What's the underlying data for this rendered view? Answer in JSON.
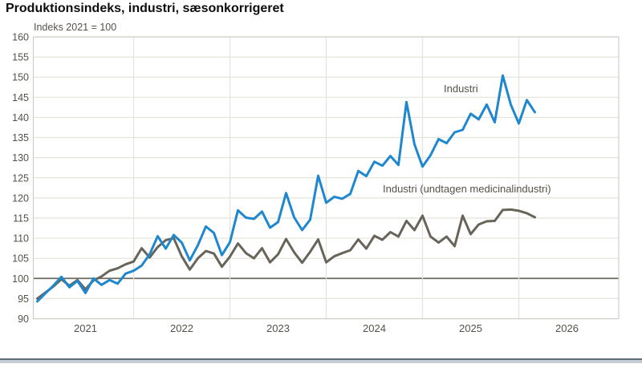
{
  "page": {
    "footer_bar": {
      "line_color": "#5c6d78",
      "band_color": "#c3cdd3"
    }
  },
  "chart_data": {
    "type": "line",
    "title": "Produktionsindeks, industri, sæsonkorrigeret",
    "subtitle": "Indeks 2021 = 100",
    "x": [
      "2020-07",
      "2020-08",
      "2020-09",
      "2020-10",
      "2020-11",
      "2020-12",
      "2021-01",
      "2021-02",
      "2021-03",
      "2021-04",
      "2021-05",
      "2021-06",
      "2021-07",
      "2021-08",
      "2021-09",
      "2021-10",
      "2021-11",
      "2021-12",
      "2022-01",
      "2022-02",
      "2022-03",
      "2022-04",
      "2022-05",
      "2022-06",
      "2022-07",
      "2022-08",
      "2022-09",
      "2022-10",
      "2022-11",
      "2022-12",
      "2023-01",
      "2023-02",
      "2023-03",
      "2023-04",
      "2023-05",
      "2023-06",
      "2023-07",
      "2023-08",
      "2023-09",
      "2023-10",
      "2023-11",
      "2023-12",
      "2024-01",
      "2024-02",
      "2024-03",
      "2024-04",
      "2024-05",
      "2024-06",
      "2024-07",
      "2024-08",
      "2024-09",
      "2024-10",
      "2024-11",
      "2024-12",
      "2025-01",
      "2025-02",
      "2025-03",
      "2025-04",
      "2025-05",
      "2025-06",
      "2025-07",
      "2025-08",
      "2025-09"
    ],
    "series": [
      {
        "name": "Industri (undtagen medicinalindustri)",
        "color": "#68645a",
        "values": [
          95.0,
          96.5,
          98.0,
          99.8,
          98.2,
          99.6,
          97.3,
          99.5,
          100.5,
          101.9,
          102.5,
          103.5,
          104.2,
          107.5,
          105.2,
          107.8,
          109.5,
          110.0,
          105.5,
          102.2,
          105.0,
          106.8,
          106.2,
          102.9,
          105.4,
          108.7,
          106.3,
          105.0,
          107.5,
          104.0,
          106.0,
          109.8,
          106.5,
          103.9,
          106.6,
          109.7,
          104.0,
          105.5,
          106.3,
          107.0,
          109.7,
          107.4,
          110.6,
          109.6,
          111.5,
          110.4,
          114.3,
          112.0,
          115.6,
          110.4,
          108.9,
          110.4,
          108.0,
          115.6,
          111.0,
          113.4,
          114.2,
          114.3,
          117.0,
          117.1,
          116.8,
          116.2,
          115.2
        ]
      },
      {
        "name": "Industri",
        "color": "#1e87cd",
        "values": [
          94.3,
          96.3,
          98.2,
          100.4,
          97.8,
          99.4,
          96.4,
          100.0,
          98.4,
          99.6,
          98.7,
          101.2,
          101.9,
          103.2,
          106.0,
          110.5,
          107.4,
          110.8,
          108.9,
          104.5,
          108.2,
          112.9,
          111.3,
          105.8,
          109.0,
          116.9,
          115.1,
          114.8,
          116.6,
          112.6,
          114.0,
          121.2,
          115.2,
          112.0,
          114.6,
          125.5,
          118.8,
          120.3,
          119.8,
          121.0,
          126.7,
          125.4,
          129.0,
          128.0,
          130.4,
          128.2,
          143.8,
          133.3,
          127.8,
          130.6,
          134.6,
          133.6,
          136.3,
          136.9,
          140.9,
          139.5,
          143.2,
          138.8,
          150.4,
          143.2,
          138.5,
          144.3,
          141.3
        ]
      }
    ],
    "ylim": [
      90,
      160
    ],
    "y_ticks": [
      90,
      95,
      100,
      105,
      110,
      115,
      120,
      125,
      130,
      135,
      140,
      145,
      150,
      155,
      160
    ],
    "baseline": 100,
    "x_year_labels": [
      "2021",
      "2022",
      "2023",
      "2024",
      "2025",
      "2026"
    ],
    "grid": "horizontal gridlines each 5; vertical gridlines at mid-year",
    "legend": "inline labels next to lines",
    "colors": {
      "grid": "#e4e4dc",
      "frame": "#cfcfc7",
      "baseline_line": "#6e6a62",
      "tick_text": "#55514a",
      "title_text": "#0d0d0d"
    }
  }
}
